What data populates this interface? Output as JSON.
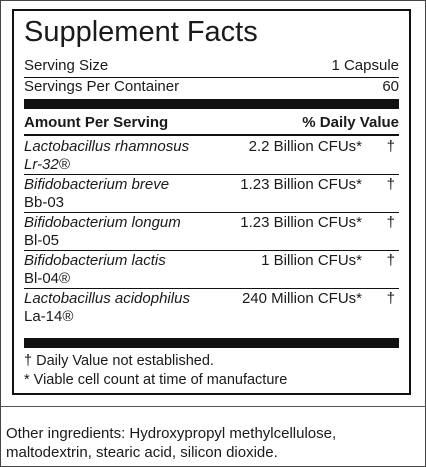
{
  "facts": {
    "title": "Supplement Facts",
    "serving_size_label": "Serving Size",
    "serving_size_value": "1 Capsule",
    "servings_label": "Servings  Per Container",
    "servings_value": "60",
    "header_left": "Amount Per Serving",
    "header_right": "% Daily Value",
    "ingredients": [
      {
        "name": "Lactobacillus rhamnosus",
        "strain": "Lr-32®",
        "amount": "2.2 Billion CFUs*",
        "dv": "†"
      },
      {
        "name": "Bifidobacterium breve",
        "strain": "Bb-03",
        "amount": "1.23 Billion CFUs*",
        "dv": "†"
      },
      {
        "name": "Bifidobacterium longum",
        "strain": "Bl-05",
        "amount": "1.23 Billion CFUs*",
        "dv": "†"
      },
      {
        "name": "Bifidobacterium lactis",
        "strain": "Bl-04®",
        "amount": "1 Billion CFUs*",
        "dv": "†"
      },
      {
        "name": "Lactobacillus acidophilus",
        "strain": "La-14®",
        "amount": "240 Million CFUs*",
        "dv": "†"
      }
    ],
    "footnote_dagger": "† Daily Value not established.",
    "footnote_star": "* Viable cell count at time of manufacture"
  },
  "other_ingredients": "Other ingredients: Hydroxypropyl methylcellulose, maltodextrin, stearic acid, silicon dioxide."
}
